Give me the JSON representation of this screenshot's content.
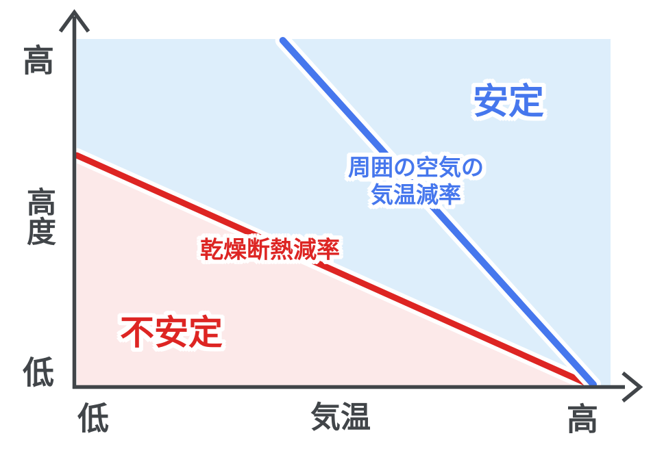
{
  "chart_data": {
    "type": "line",
    "title": "",
    "xlabel": "気温",
    "ylabel": "高度",
    "x_tick_labels": [
      "低",
      "高"
    ],
    "y_tick_labels": [
      "低",
      "高"
    ],
    "x_range": [
      0,
      1
    ],
    "y_range": [
      0,
      1
    ],
    "grid": "off",
    "legend": "inline-annotations",
    "series": [
      {
        "name": "乾燥断熱減率",
        "color": "#dd2523",
        "points": [
          [
            0.0,
            0.664
          ],
          [
            0.963,
            0.0
          ]
        ]
      },
      {
        "name": "周囲の空気の気温減率",
        "color": "#4677ed",
        "points": [
          [
            0.386,
            0.996
          ],
          [
            0.968,
            0.002
          ]
        ]
      }
    ],
    "regions": [
      {
        "name": "安定",
        "color": "#ddeefb",
        "position": "above dry adiabatic lapse-rate line"
      },
      {
        "name": "不安定",
        "color": "#fce9e9",
        "position": "below dry adiabatic lapse-rate line"
      }
    ]
  },
  "labels": {
    "stable": "安定",
    "unstable": "不安定",
    "red_line": "乾燥断熱減率",
    "blue_line_1": "周囲の空気の",
    "blue_line_2": "気温減率",
    "x_axis": "気温",
    "x_low": "低",
    "x_high": "高",
    "y_axis": "高度",
    "y_low": "低",
    "y_high": "高"
  },
  "colors": {
    "stable_fill": "#ddeefb",
    "unstable_fill": "#fce9e9",
    "blue": "#4677ed",
    "red": "#dd2523",
    "axis": "#414549",
    "halo": "#ffffff",
    "background": "#ffffff"
  }
}
